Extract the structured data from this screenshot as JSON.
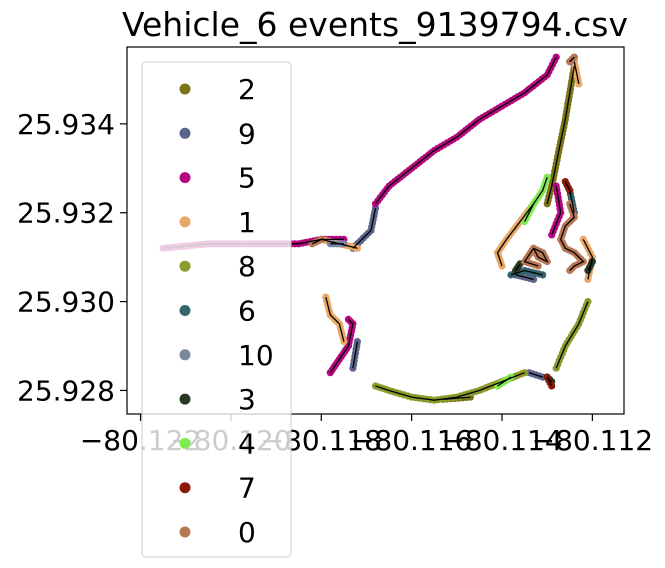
{
  "chart_data": {
    "type": "scatter",
    "title": "Vehicle_6 events_9139794.csv",
    "xlabel": "",
    "ylabel": "",
    "xlim": [
      -80.1223,
      -80.1113
    ],
    "ylim": [
      25.92747,
      25.93573
    ],
    "x_ticks": [
      -80.122,
      -80.12,
      -80.118,
      -80.116,
      -80.114,
      -80.112
    ],
    "x_tick_labels": [
      "−80.122",
      "−80.120",
      "−80.118",
      "−80.116",
      "−80.114",
      "−80.112"
    ],
    "y_ticks": [
      25.928,
      25.93,
      25.932,
      25.934
    ],
    "y_tick_labels": [
      "25.928",
      "25.930",
      "25.932",
      "25.934"
    ],
    "grid": false,
    "legend_position": "upper-left",
    "track_line_color": "#000000",
    "series": [
      {
        "name": "2",
        "color": "#7a7417",
        "segments": [
          [
            [
              -80.1124,
              25.9353
            ],
            [
              -80.1125,
              25.9347
            ],
            [
              -80.1126,
              25.9341
            ],
            [
              -80.1127,
              25.9336
            ],
            [
              -80.1128,
              25.9331
            ],
            [
              -80.1129,
              25.9326
            ],
            [
              -80.113,
              25.9322
            ]
          ],
          [
            [
              -80.1147,
              25.92785
            ],
            [
              -80.1153,
              25.9278
            ]
          ]
        ]
      },
      {
        "name": "9",
        "color": "#5b6589",
        "segments": [
          [
            [
              -80.1173,
              25.9312
            ],
            [
              -80.1169,
              25.9316
            ],
            [
              -80.1168,
              25.9321
            ]
          ],
          [
            [
              -80.1133,
              25.9305
            ],
            [
              -80.1137,
              25.9306
            ]
          ],
          [
            [
              -80.1131,
              25.9283
            ],
            [
              -80.1134,
              25.9284
            ]
          ],
          [
            [
              -80.1172,
              25.9291
            ],
            [
              -80.1173,
              25.9285
            ]
          ]
        ]
      },
      {
        "name": "5",
        "color": "#b5067f",
        "segments": [
          [
            [
              -80.1215,
              25.9312
            ],
            [
              -80.1205,
              25.9313
            ],
            [
              -80.1195,
              25.9313
            ],
            [
              -80.1185,
              25.9313
            ],
            [
              -80.118,
              25.9314
            ],
            [
              -80.1175,
              25.9314
            ]
          ],
          [
            [
              -80.1168,
              25.9322
            ],
            [
              -80.1165,
              25.9326
            ],
            [
              -80.116,
              25.933
            ],
            [
              -80.1155,
              25.9334
            ],
            [
              -80.115,
              25.9337
            ],
            [
              -80.1145,
              25.9341
            ],
            [
              -80.114,
              25.9344
            ],
            [
              -80.1135,
              25.9347
            ],
            [
              -80.113,
              25.9351
            ],
            [
              -80.1128,
              25.9355
            ]
          ],
          [
            [
              -80.1178,
              25.9284
            ],
            [
              -80.1176,
              25.9287
            ],
            [
              -80.1174,
              25.929
            ],
            [
              -80.1173,
              25.9295
            ],
            [
              -80.1174,
              25.9296
            ]
          ],
          [
            [
              -80.1128,
              25.9326
            ],
            [
              -80.1127,
              25.932
            ],
            [
              -80.1129,
              25.9315
            ]
          ]
        ]
      },
      {
        "name": "1",
        "color": "#e8a866",
        "segments": [
          [
            [
              -80.118,
              25.9314
            ],
            [
              -80.1176,
              25.9313
            ],
            [
              -80.1172,
              25.9312
            ]
          ],
          [
            [
              -80.1179,
              25.9301
            ],
            [
              -80.1178,
              25.9297
            ],
            [
              -80.1176,
              25.9295
            ],
            [
              -80.1175,
              25.9291
            ]
          ],
          [
            [
              -80.114,
              25.9308
            ],
            [
              -80.1141,
              25.9311
            ],
            [
              -80.1139,
              25.9314
            ],
            [
              -80.1136,
              25.9318
            ],
            [
              -80.1133,
              25.9322
            ]
          ],
          [
            [
              -80.1124,
              25.9354
            ],
            [
              -80.1123,
              25.9349
            ]
          ],
          [
            [
              -80.1121,
              25.9305
            ],
            [
              -80.112,
              25.931
            ],
            [
              -80.1122,
              25.9314
            ]
          ]
        ]
      },
      {
        "name": "8",
        "color": "#8c9a2a",
        "segments": [
          [
            [
              -80.1168,
              25.9281
            ],
            [
              -80.1165,
              25.928
            ],
            [
              -80.116,
              25.92785
            ],
            [
              -80.1155,
              25.92778
            ],
            [
              -80.115,
              25.92785
            ],
            [
              -80.1145,
              25.928
            ],
            [
              -80.114,
              25.9282
            ],
            [
              -80.1135,
              25.9284
            ]
          ],
          [
            [
              -80.1128,
              25.9285
            ],
            [
              -80.1126,
              25.929
            ],
            [
              -80.1123,
              25.9295
            ],
            [
              -80.1121,
              25.93
            ]
          ]
        ]
      },
      {
        "name": "6",
        "color": "#33666b",
        "segments": [
          [
            [
              -80.1138,
              25.9306
            ],
            [
              -80.1135,
              25.9307
            ],
            [
              -80.1131,
              25.9306
            ]
          ],
          [
            [
              -80.1125,
              25.9325
            ],
            [
              -80.1124,
              25.932
            ]
          ]
        ]
      },
      {
        "name": "10",
        "color": "#7a879f",
        "segments": [
          [
            [
              -80.1178,
              25.9313
            ],
            [
              -80.1175,
              25.9313
            ]
          ]
        ]
      },
      {
        "name": "3",
        "color": "#293824",
        "segments": [
          [
            [
              -80.1124,
              25.9355
            ],
            [
              -80.1125,
              25.9354
            ]
          ],
          [
            [
              -80.1129,
              25.9282
            ],
            [
              -80.113,
              25.9283
            ]
          ],
          [
            [
              -80.112,
              25.9309
            ],
            [
              -80.1121,
              25.9307
            ]
          ],
          [
            [
              -80.1136,
              25.93085
            ],
            [
              -80.1137,
              25.9307
            ]
          ]
        ]
      },
      {
        "name": "4",
        "color": "#7fea52",
        "segments": [
          [
            [
              -80.113,
              25.9328
            ],
            [
              -80.1131,
              25.9325
            ],
            [
              -80.1133,
              25.9322
            ],
            [
              -80.1135,
              25.9318
            ]
          ],
          [
            [
              -80.1141,
              25.9281
            ],
            [
              -80.1138,
              25.9283
            ]
          ]
        ]
      },
      {
        "name": "7",
        "color": "#8a1a08",
        "segments": [
          [
            [
              -80.1126,
              25.9327
            ],
            [
              -80.1125,
              25.9325
            ]
          ],
          [
            [
              -80.1129,
              25.9281
            ],
            [
              -80.113,
              25.9283
            ]
          ]
        ]
      },
      {
        "name": "0",
        "color": "#b87655",
        "segments": [
          [
            [
              -80.1182,
              25.9313
            ],
            [
              -80.118,
              25.9314
            ]
          ],
          [
            [
              -80.1133,
              25.9312
            ],
            [
              -80.1132,
              25.931
            ],
            [
              -80.113,
              25.9309
            ],
            [
              -80.1131,
              25.9311
            ],
            [
              -80.1133,
              25.9312
            ],
            [
              -80.1135,
              25.9309
            ],
            [
              -80.1132,
              25.9308
            ]
          ],
          [
            [
              -80.1125,
              25.9322
            ],
            [
              -80.1124,
              25.9319
            ],
            [
              -80.1126,
              25.9317
            ],
            [
              -80.1127,
              25.9314
            ],
            [
              -80.1126,
              25.9312
            ],
            [
              -80.1124,
              25.9311
            ],
            [
              -80.1122,
              25.9309
            ],
            [
              -80.1124,
              25.9308
            ],
            [
              -80.1125,
              25.9307
            ]
          ],
          [
            [
              -80.1125,
              25.9354
            ],
            [
              -80.1124,
              25.9355
            ]
          ]
        ]
      }
    ]
  }
}
